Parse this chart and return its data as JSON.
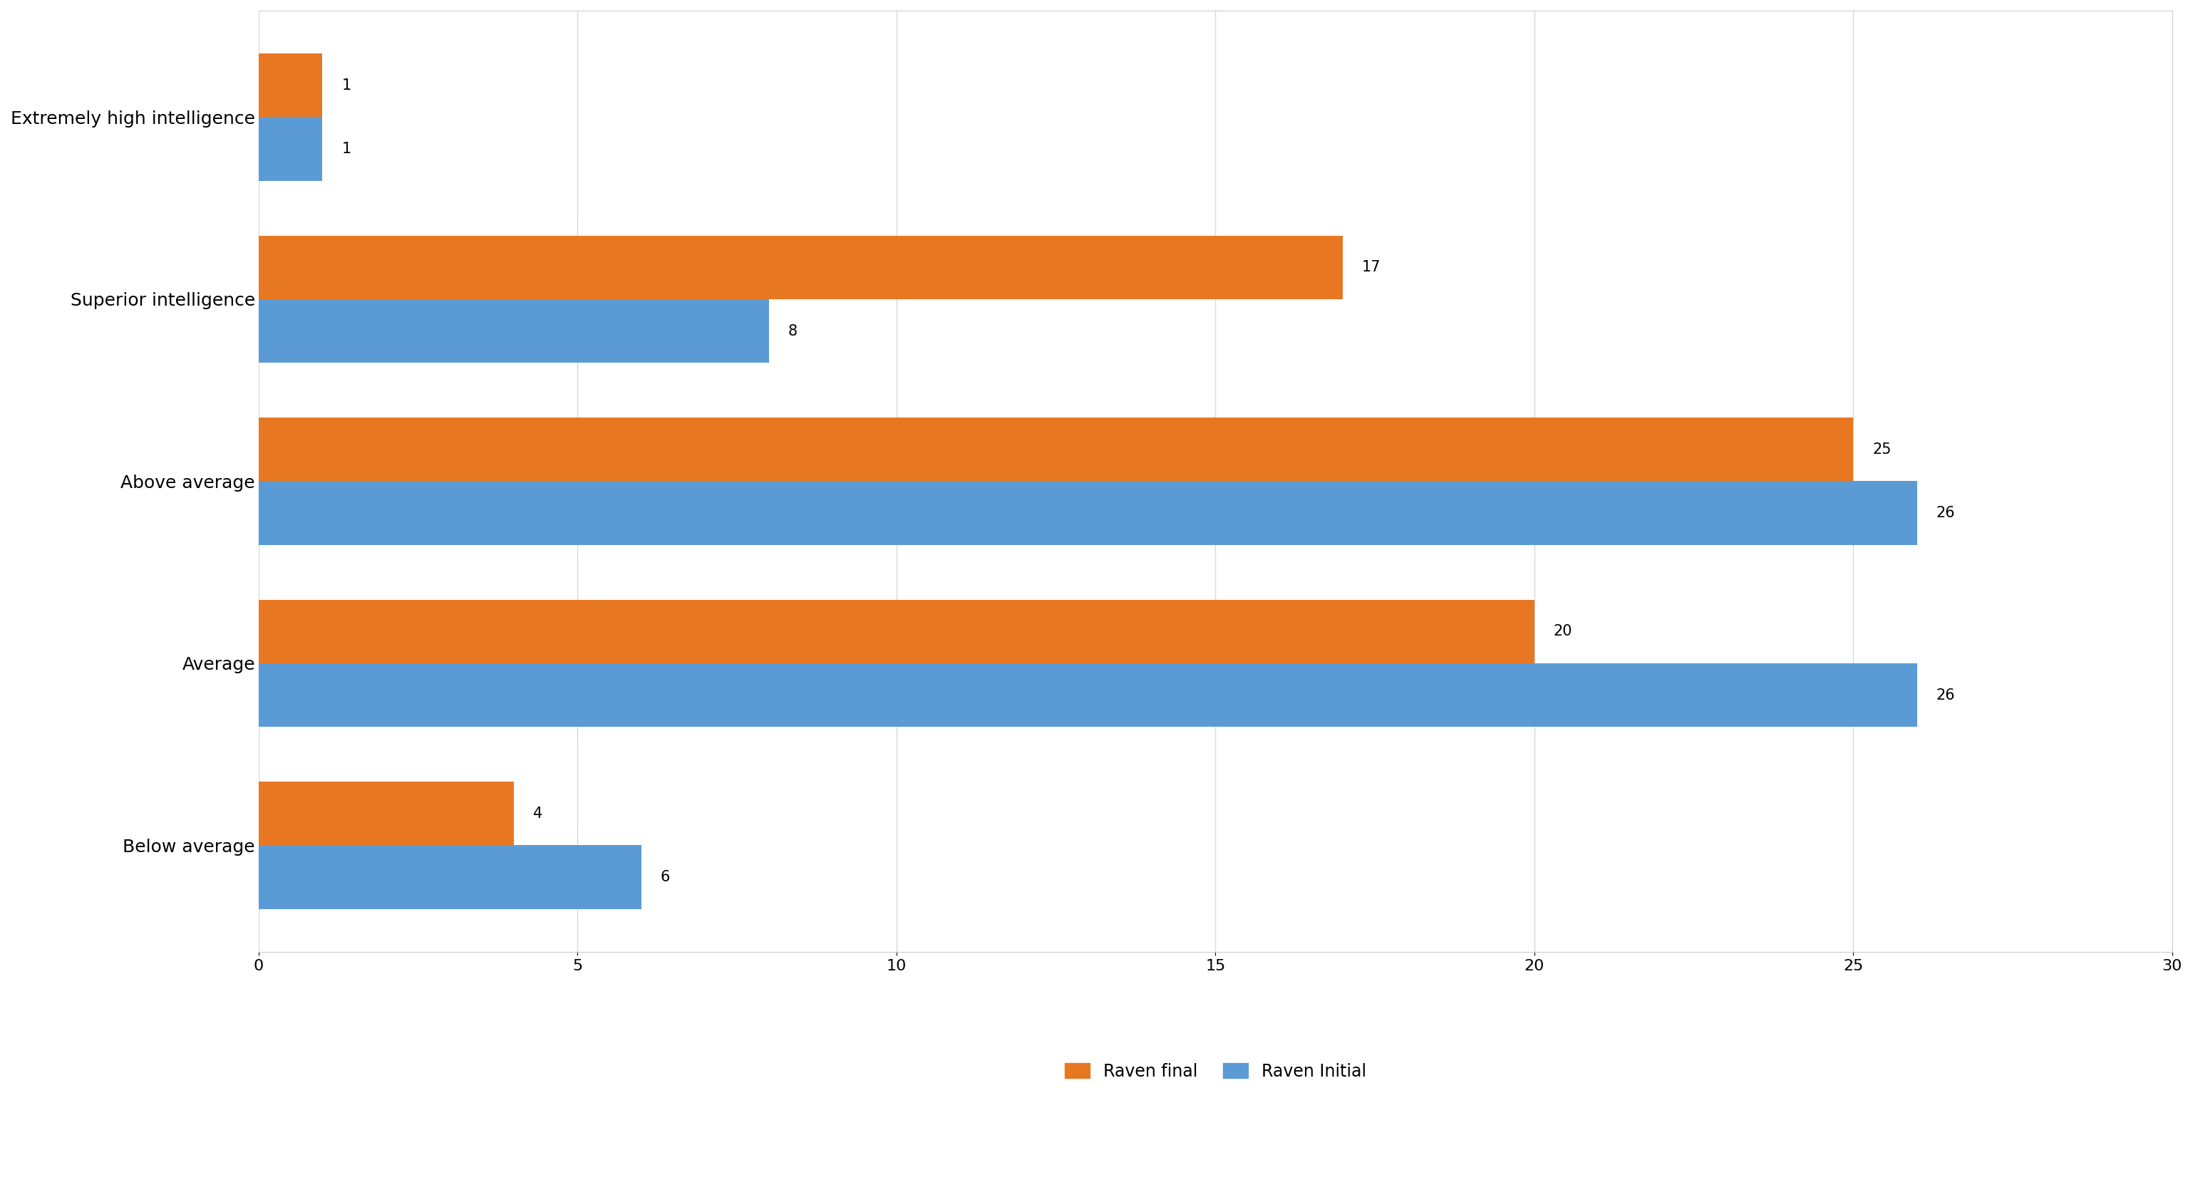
{
  "categories": [
    "Below average",
    "Average",
    "Above average",
    "Superior intelligence",
    "Extremely high intelligence"
  ],
  "raven_final": [
    4,
    20,
    25,
    17,
    1
  ],
  "raven_initial": [
    6,
    26,
    26,
    8,
    1
  ],
  "raven_final_color": "#E87722",
  "raven_initial_color": "#5B9BD5",
  "bar_height": 0.35,
  "xlim": [
    0,
    30
  ],
  "xticks": [
    0,
    5,
    10,
    15,
    20,
    25,
    30
  ],
  "legend_labels": [
    "Raven final",
    "Raven Initial"
  ],
  "background_color": "#FFFFFF",
  "grid_color": "#D9D9D9",
  "label_fontsize": 18,
  "tick_fontsize": 16,
  "legend_fontsize": 17,
  "value_fontsize": 15
}
